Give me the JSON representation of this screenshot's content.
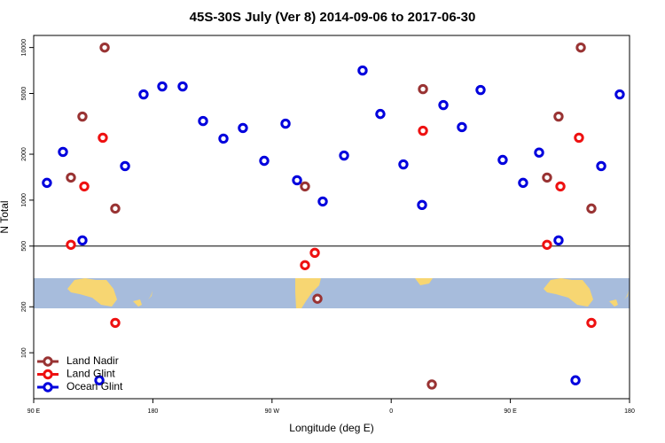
{
  "chart_data": {
    "type": "scatter",
    "title": "45S-30S July (Ver 8)   2014-09-06 to 2017-06-30",
    "x_label": "Longitude (deg E)",
    "y_label": "N Total",
    "xlim": [
      90,
      540
    ],
    "ylim": [
      50,
      12000
    ],
    "log_y": true,
    "xticks": [
      {
        "value": 90,
        "label": "90 E"
      },
      180,
      {
        "value": 270,
        "label": "90 W"
      },
      {
        "value": 360,
        "label": "0"
      },
      {
        "value": 450,
        "label": "90 E"
      },
      {
        "value": 540,
        "label": "180"
      }
    ],
    "yticks": [
      100,
      200,
      500,
      1000,
      2000,
      5000,
      10000
    ],
    "hline": 500,
    "legend": "lower left",
    "series": [
      {
        "name": "Land Nadir",
        "color": "#993333",
        "x": [
          143.6,
          126.8,
          118.1,
          151.6,
          294.9,
          304.3,
          384.0,
          390.7,
          503.2,
          486.4,
          477.7,
          511.2
        ],
        "values": [
          10000,
          3530,
          1406,
          881,
          1230,
          226,
          5340,
          62,
          10000,
          3530,
          1406,
          881
        ]
      },
      {
        "name": "Land Glint",
        "color": "#ee1111",
        "x": [
          118.1,
          128.2,
          142.2,
          151.6,
          294.9,
          302.3,
          384.0,
          477.7,
          487.8,
          501.8,
          511.2
        ],
        "values": [
          510,
          1230,
          2565,
          157,
          375,
          452,
          2850,
          510,
          1230,
          2565,
          157
        ]
      },
      {
        "name": "Ocean Glint",
        "color": "#0000dd",
        "x": [
          100.0,
          112.1,
          126.8,
          139.6,
          159.0,
          173.0,
          187.1,
          202.5,
          217.9,
          233.3,
          248.0,
          264.1,
          280.2,
          288.9,
          308.3,
          324.4,
          338.4,
          351.8,
          369.2,
          383.3,
          399.4,
          413.4,
          427.5,
          444.2,
          459.6,
          471.7,
          486.4,
          499.2,
          518.6,
          532.6
        ],
        "values": [
          1298,
          2070,
          545,
          66,
          1672,
          4930,
          5560,
          5560,
          3300,
          2530,
          2970,
          1810,
          3170,
          1350,
          980,
          1960,
          7070,
          3670,
          1715,
          930,
          4200,
          3010,
          5270,
          1835,
          1298,
          2050,
          545,
          66,
          1672,
          4930
        ]
      }
    ]
  }
}
